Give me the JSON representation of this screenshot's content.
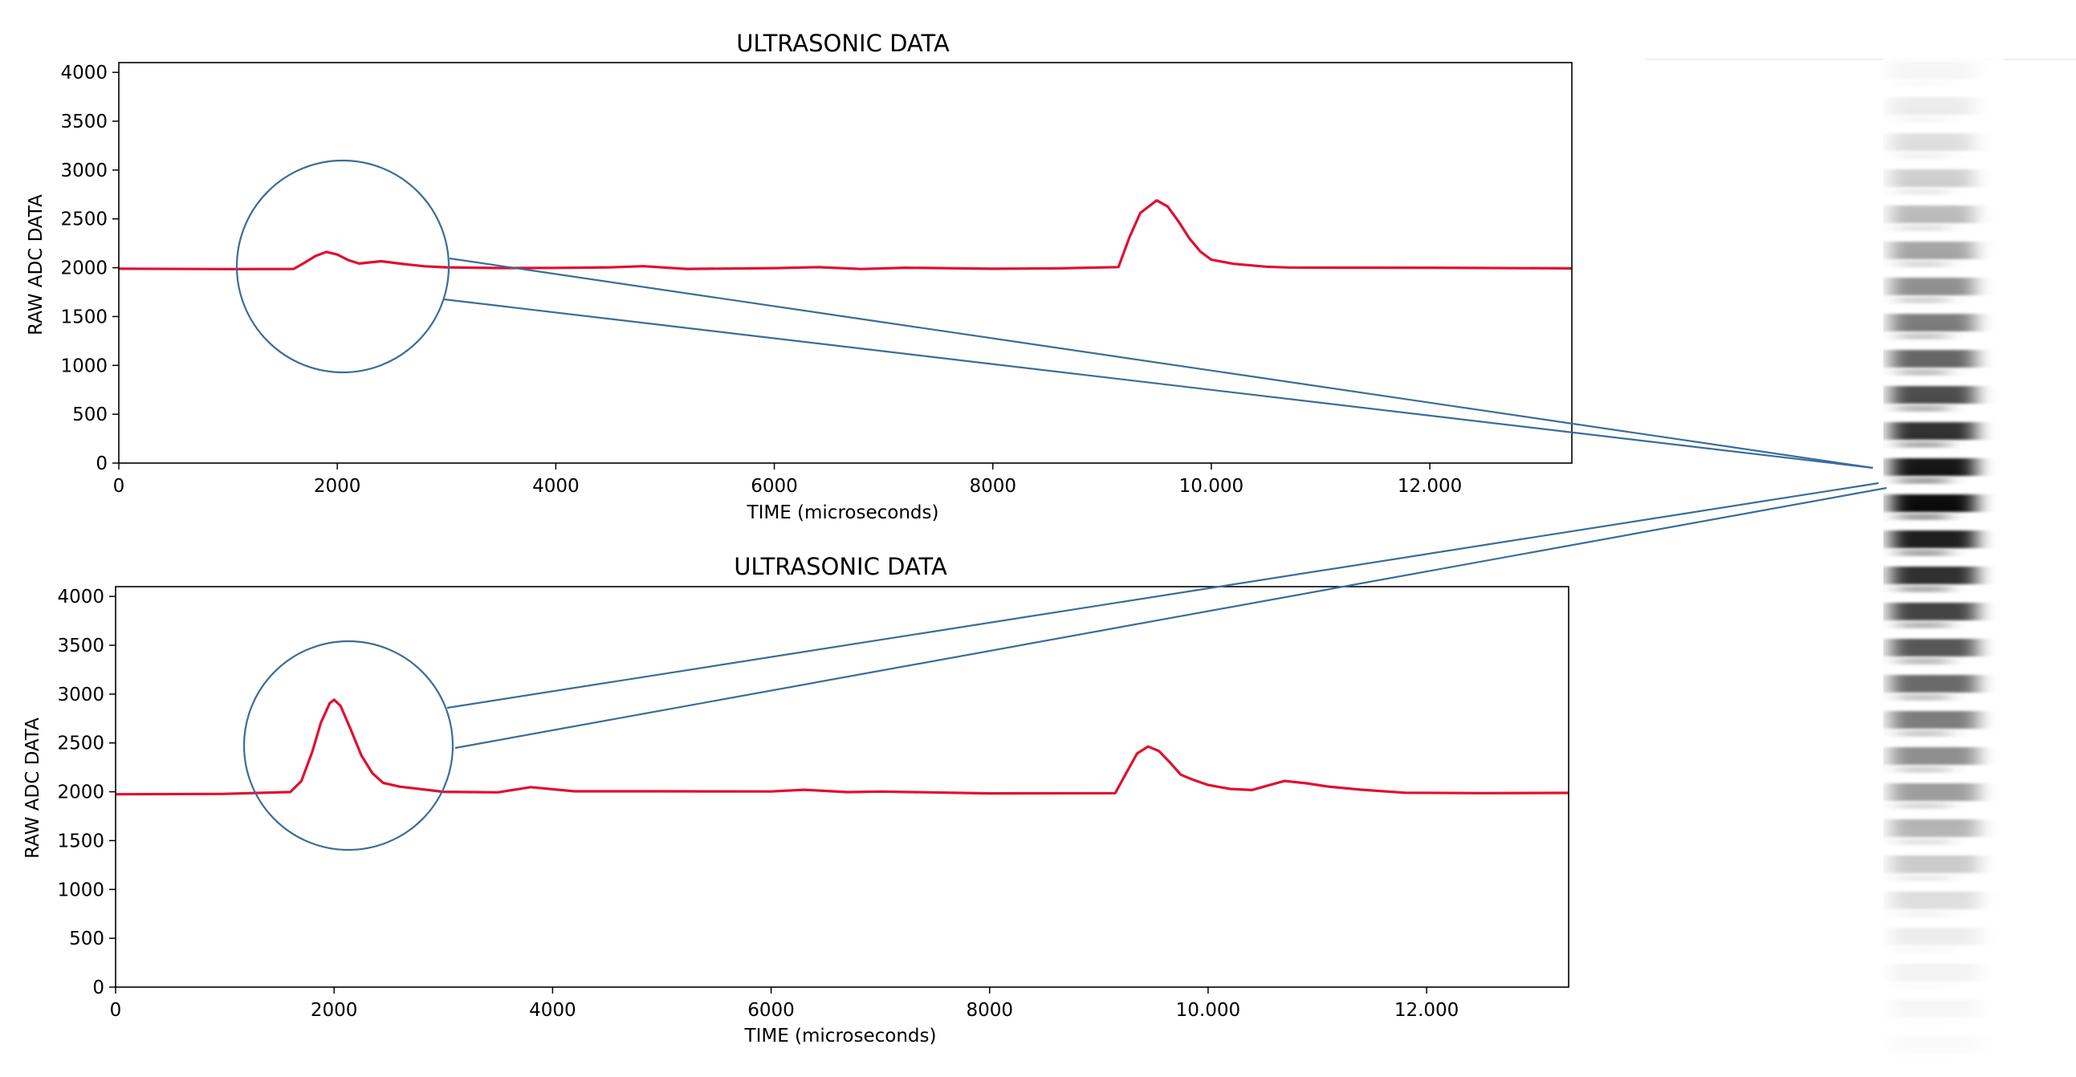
{
  "chart_data": [
    {
      "type": "line",
      "title": "ULTRASONIC DATA",
      "xlabel": "TIME (microseconds)",
      "ylabel": "RAW ADC DATA",
      "xlim": [
        0,
        13300
      ],
      "ylim": [
        0,
        4100
      ],
      "xticks": [
        0,
        2000,
        4000,
        6000,
        8000,
        10000,
        12000
      ],
      "xtick_labels": [
        "0",
        "2000",
        "4000",
        "6000",
        "8000",
        "10.000",
        "12.000"
      ],
      "yticks": [
        0,
        500,
        1000,
        1500,
        2000,
        2500,
        3000,
        3500,
        4000
      ],
      "ytick_labels": [
        "0",
        "500",
        "1000",
        "1500",
        "2000",
        "2500",
        "3000",
        "3500",
        "4000"
      ],
      "grid": false,
      "series": [
        {
          "color": "#e0102f",
          "x": [
            0,
            1000,
            1600,
            1700,
            1800,
            1900,
            2000,
            2100,
            2200,
            2400,
            2600,
            2800,
            3000,
            3500,
            4000,
            4500,
            4800,
            5200,
            6000,
            6400,
            6800,
            7200,
            8000,
            8600,
            9150,
            9250,
            9350,
            9500,
            9600,
            9700,
            9800,
            9900,
            10000,
            10200,
            10500,
            10700,
            11000,
            12000,
            13300
          ],
          "y": [
            1990,
            1990,
            1995,
            2060,
            2130,
            2170,
            2140,
            2080,
            2040,
            2060,
            2030,
            2005,
            1995,
            1990,
            1995,
            2005,
            2020,
            1995,
            2005,
            2015,
            1995,
            2005,
            1990,
            1990,
            2000,
            2300,
            2550,
            2680,
            2620,
            2470,
            2300,
            2170,
            2090,
            2050,
            2020,
            2010,
            2005,
            2000,
            1990
          ]
        }
      ]
    },
    {
      "type": "line",
      "title": "ULTRASONIC DATA",
      "xlabel": "TIME (microseconds)",
      "ylabel": "RAW ADC DATA",
      "xlim": [
        0,
        13300
      ],
      "ylim": [
        0,
        4100
      ],
      "xticks": [
        0,
        2000,
        4000,
        6000,
        8000,
        10000,
        12000
      ],
      "xtick_labels": [
        "0",
        "2000",
        "4000",
        "6000",
        "8000",
        "10.000",
        "12.000"
      ],
      "yticks": [
        0,
        500,
        1000,
        1500,
        2000,
        2500,
        3000,
        3500,
        4000
      ],
      "ytick_labels": [
        "0",
        "500",
        "1000",
        "1500",
        "2000",
        "2500",
        "3000",
        "3500",
        "4000"
      ],
      "grid": false,
      "series": [
        {
          "color": "#e0102f",
          "x": [
            0,
            1000,
            1600,
            1700,
            1800,
            1880,
            1960,
            2000,
            2060,
            2150,
            2250,
            2350,
            2450,
            2600,
            2800,
            3000,
            3500,
            3800,
            4200,
            5000,
            6000,
            6300,
            6700,
            7000,
            8000,
            9150,
            9250,
            9350,
            9450,
            9550,
            9650,
            9750,
            9850,
            10000,
            10200,
            10400,
            10550,
            10700,
            10900,
            11100,
            11400,
            11800,
            12500,
            13300
          ],
          "y": [
            1975,
            1975,
            1990,
            2100,
            2400,
            2700,
            2900,
            2940,
            2880,
            2650,
            2380,
            2200,
            2100,
            2060,
            2030,
            2000,
            1990,
            2040,
            1995,
            1995,
            1995,
            2015,
            1995,
            2005,
            1990,
            1995,
            2200,
            2400,
            2470,
            2420,
            2300,
            2170,
            2120,
            2060,
            2020,
            2010,
            2060,
            2110,
            2090,
            2060,
            2030,
            2000,
            1995,
            1995
          ]
        }
      ]
    }
  ],
  "colors": {
    "signal_line": "#e0102f",
    "callout": "#3a6d9a",
    "axes": "#000000"
  }
}
